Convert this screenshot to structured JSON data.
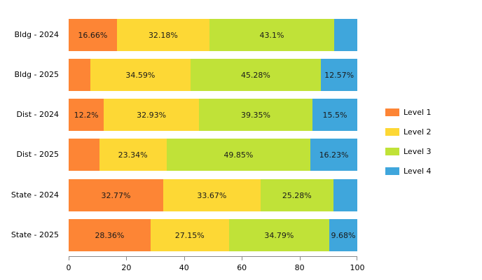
{
  "chart_data": {
    "type": "bar",
    "orientation": "horizontal",
    "stacked": true,
    "title": "",
    "xlabel": "",
    "ylabel": "",
    "xlim": [
      0,
      100
    ],
    "x_ticks": [
      "0",
      "20",
      "40",
      "60",
      "80",
      "100"
    ],
    "grid": false,
    "legend_position": "right",
    "categories": [
      "Bldg - 2024",
      "Bldg - 2025",
      "Dist - 2024",
      "Dist - 2025",
      "State - 2024",
      "State - 2025"
    ],
    "series": [
      {
        "name": "Level 1",
        "color": "#fd8535",
        "values": [
          16.66,
          7.56,
          12.2,
          10.58,
          32.77,
          28.36
        ],
        "labels": [
          "16.66%",
          "",
          "12.2%",
          "",
          "32.77%",
          "28.36%"
        ]
      },
      {
        "name": "Level 2",
        "color": "#fdd835",
        "values": [
          32.18,
          34.59,
          32.93,
          23.34,
          33.67,
          27.15
        ],
        "labels": [
          "32.18%",
          "34.59%",
          "32.93%",
          "23.34%",
          "33.67%",
          "27.15%"
        ]
      },
      {
        "name": "Level 3",
        "color": "#c0e238",
        "values": [
          43.1,
          45.28,
          39.35,
          49.85,
          25.28,
          34.79
        ],
        "labels": [
          "43.1%",
          "45.28%",
          "39.35%",
          "49.85%",
          "25.28%",
          "34.79%"
        ]
      },
      {
        "name": "Level 4",
        "color": "#3fa6dc",
        "values": [
          8.06,
          12.57,
          15.5,
          16.23,
          8.28,
          9.68
        ],
        "labels": [
          "",
          "12.57%",
          "15.5%",
          "16.23%",
          "",
          "9.68%"
        ]
      }
    ]
  },
  "legend": {
    "items": [
      {
        "label": "Level 1",
        "color": "#fd8535"
      },
      {
        "label": "Level 2",
        "color": "#fdd835"
      },
      {
        "label": "Level 3",
        "color": "#c0e238"
      },
      {
        "label": "Level 4",
        "color": "#3fa6dc"
      }
    ]
  }
}
